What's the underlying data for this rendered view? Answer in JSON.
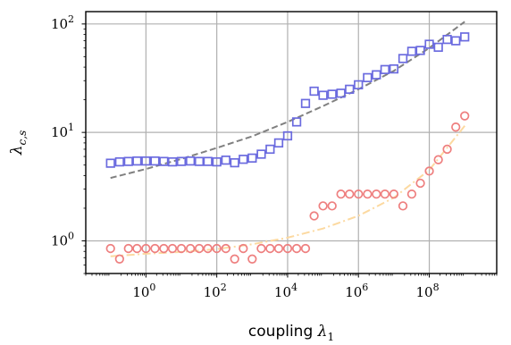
{
  "chart_data": {
    "type": "scatter",
    "title": "",
    "xlabel": "coupling",
    "xlabel_symbol": "λ",
    "xlabel_sub": "1",
    "ylabel_symbol": "λ",
    "ylabel_sub": "c,s",
    "xscale": "log",
    "yscale": "log",
    "xlim": [
      0.02,
      8000000000
    ],
    "ylim": [
      0.5,
      130
    ],
    "grid": true,
    "legend": "none",
    "x_ticks": [
      {
        "base": "10",
        "exp": "0",
        "value": 1
      },
      {
        "base": "10",
        "exp": "2",
        "value": 100
      },
      {
        "base": "10",
        "exp": "4",
        "value": 10000
      },
      {
        "base": "10",
        "exp": "6",
        "value": 1000000
      },
      {
        "base": "10",
        "exp": "8",
        "value": 100000000
      }
    ],
    "y_ticks": [
      {
        "base": "10",
        "exp": "0",
        "value": 1
      },
      {
        "base": "10",
        "exp": "1",
        "value": 10
      },
      {
        "base": "10",
        "exp": "2",
        "value": 100
      }
    ],
    "series": [
      {
        "marker": "square",
        "color": "#6b6bdf",
        "points": [
          [
            0.1,
            5.2
          ],
          [
            0.18,
            5.35
          ],
          [
            0.32,
            5.4
          ],
          [
            0.56,
            5.45
          ],
          [
            1,
            5.45
          ],
          [
            1.8,
            5.45
          ],
          [
            3.2,
            5.4
          ],
          [
            5.6,
            5.35
          ],
          [
            10,
            5.4
          ],
          [
            18,
            5.45
          ],
          [
            32,
            5.4
          ],
          [
            56,
            5.4
          ],
          [
            100,
            5.35
          ],
          [
            180,
            5.55
          ],
          [
            320,
            5.25
          ],
          [
            560,
            5.65
          ],
          [
            1000,
            5.8
          ],
          [
            1800,
            6.3
          ],
          [
            3200,
            7.0
          ],
          [
            5600,
            8.0
          ],
          [
            10000,
            9.3
          ],
          [
            18000,
            12.5
          ],
          [
            32000,
            18.5
          ],
          [
            56000,
            24
          ],
          [
            100000,
            22
          ],
          [
            180000,
            22.5
          ],
          [
            320000,
            23
          ],
          [
            560000,
            25
          ],
          [
            1000000,
            27.5
          ],
          [
            1800000,
            32
          ],
          [
            3200000,
            34
          ],
          [
            5600000,
            38
          ],
          [
            10000000,
            38.5
          ],
          [
            18000000,
            48
          ],
          [
            32000000,
            56
          ],
          [
            56000000,
            57
          ],
          [
            100000000,
            65
          ],
          [
            180000000,
            61
          ],
          [
            320000000,
            72
          ],
          [
            560000000,
            70
          ],
          [
            1000000000,
            76
          ]
        ]
      },
      {
        "marker": "circle",
        "color": "#ee7f7f",
        "points": [
          [
            0.1,
            0.85
          ],
          [
            0.18,
            0.68
          ],
          [
            0.32,
            0.85
          ],
          [
            0.56,
            0.85
          ],
          [
            1,
            0.85
          ],
          [
            1.8,
            0.85
          ],
          [
            3.2,
            0.85
          ],
          [
            5.6,
            0.85
          ],
          [
            10,
            0.85
          ],
          [
            18,
            0.85
          ],
          [
            32,
            0.85
          ],
          [
            56,
            0.85
          ],
          [
            100,
            0.85
          ],
          [
            180,
            0.85
          ],
          [
            320,
            0.68
          ],
          [
            560,
            0.85
          ],
          [
            1000,
            0.68
          ],
          [
            1800,
            0.85
          ],
          [
            3200,
            0.85
          ],
          [
            5600,
            0.85
          ],
          [
            10000,
            0.85
          ],
          [
            18000,
            0.85
          ],
          [
            32000,
            0.85
          ],
          [
            56000,
            1.7
          ],
          [
            100000,
            2.1
          ],
          [
            180000,
            2.1
          ],
          [
            320000,
            2.7
          ],
          [
            560000,
            2.7
          ],
          [
            1000000,
            2.7
          ],
          [
            1800000,
            2.7
          ],
          [
            3200000,
            2.7
          ],
          [
            5600000,
            2.7
          ],
          [
            10000000,
            2.7
          ],
          [
            18000000,
            2.1
          ],
          [
            32000000,
            2.7
          ],
          [
            56000000,
            3.4
          ],
          [
            100000000,
            4.4
          ],
          [
            180000000,
            5.6
          ],
          [
            320000000,
            7.0
          ],
          [
            560000000,
            11.2
          ],
          [
            1000000000,
            14.2
          ]
        ]
      }
    ],
    "fits": [
      {
        "style": "dashed",
        "color": "#808080",
        "points": [
          [
            0.1,
            3.8
          ],
          [
            1,
            4.6
          ],
          [
            10,
            5.7
          ],
          [
            100,
            7.2
          ],
          [
            1000,
            9.2
          ],
          [
            10000,
            12.5
          ],
          [
            100000,
            17.5
          ],
          [
            1000000,
            25
          ],
          [
            10000000,
            37
          ],
          [
            100000000,
            60
          ],
          [
            1000000000,
            105
          ]
        ]
      },
      {
        "style": "dashdot",
        "color": "#fcd9a0",
        "points": [
          [
            0.1,
            0.72
          ],
          [
            1,
            0.76
          ],
          [
            10,
            0.79
          ],
          [
            100,
            0.84
          ],
          [
            1000,
            0.93
          ],
          [
            10000,
            1.07
          ],
          [
            100000,
            1.3
          ],
          [
            1000000,
            1.7
          ],
          [
            10000000,
            2.5
          ],
          [
            100000000,
            4.5
          ],
          [
            1000000000,
            11.5
          ]
        ]
      }
    ]
  }
}
